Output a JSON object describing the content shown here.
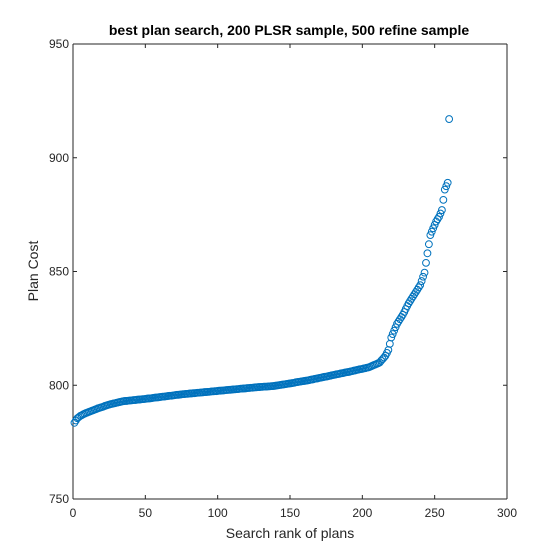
{
  "chart_data": {
    "type": "scatter",
    "title": "best plan search, 200 PLSR sample, 500 refine sample",
    "xlabel": "Search rank of plans",
    "ylabel": "Plan Cost",
    "xlim": [
      0,
      300
    ],
    "ylim": [
      750,
      950
    ],
    "xticks": [
      "0",
      "50",
      "100",
      "150",
      "200",
      "250",
      "300"
    ],
    "yticks": [
      "750",
      "800",
      "850",
      "900",
      "950"
    ],
    "grid": false,
    "marker": "open-circle",
    "marker_color": "#0072BD",
    "series": [
      {
        "anchors": [
          [
            1,
            783.5
          ],
          [
            2,
            784.5
          ],
          [
            3,
            785.5
          ],
          [
            5,
            786.5
          ],
          [
            8,
            787.5
          ],
          [
            12,
            788.5
          ],
          [
            18,
            790
          ],
          [
            25,
            791.5
          ],
          [
            35,
            793
          ],
          [
            50,
            794
          ],
          [
            75,
            796
          ],
          [
            100,
            797.5
          ],
          [
            125,
            799
          ],
          [
            140,
            799.8
          ],
          [
            150,
            800.8
          ],
          [
            165,
            802.5
          ],
          [
            180,
            804.5
          ],
          [
            195,
            806.5
          ],
          [
            205,
            808
          ],
          [
            212,
            810
          ],
          [
            216,
            813
          ],
          [
            218,
            815.5
          ],
          [
            220,
            821
          ],
          [
            224,
            827
          ],
          [
            228,
            831
          ],
          [
            232,
            836
          ],
          [
            236,
            840
          ],
          [
            240,
            844
          ],
          [
            243,
            849.5
          ],
          [
            245,
            858
          ],
          [
            247,
            866
          ],
          [
            249,
            869
          ],
          [
            251,
            872
          ],
          [
            253,
            874
          ],
          [
            255,
            877
          ],
          [
            257,
            886
          ],
          [
            259,
            889
          ],
          [
            260,
            917
          ]
        ],
        "values": [
          [
            1,
            783.5
          ],
          [
            2,
            784.5
          ],
          [
            3,
            785.5
          ],
          [
            4,
            786.0
          ],
          [
            5,
            786.5
          ],
          [
            6,
            786.8
          ],
          [
            7,
            787.2
          ],
          [
            8,
            787.5
          ],
          [
            9,
            787.8
          ],
          [
            10,
            788.0
          ],
          [
            11,
            788.3
          ],
          [
            12,
            788.5
          ],
          [
            13,
            788.8
          ],
          [
            14,
            789.0
          ],
          [
            15,
            789.3
          ],
          [
            16,
            789.5
          ],
          [
            17,
            789.8
          ],
          [
            18,
            790.0
          ],
          [
            19,
            790.2
          ],
          [
            20,
            790.4
          ],
          [
            21,
            790.6
          ],
          [
            22,
            790.9
          ],
          [
            23,
            791.1
          ],
          [
            24,
            791.3
          ],
          [
            25,
            791.5
          ],
          [
            26,
            791.7
          ],
          [
            27,
            791.8
          ],
          [
            28,
            792.0
          ],
          [
            29,
            792.1
          ],
          [
            30,
            792.3
          ],
          [
            31,
            792.4
          ],
          [
            32,
            792.6
          ],
          [
            33,
            792.7
          ],
          [
            34,
            792.9
          ],
          [
            35,
            793.0
          ],
          [
            36,
            793.1
          ],
          [
            37,
            793.1
          ],
          [
            38,
            793.2
          ],
          [
            39,
            793.3
          ],
          [
            40,
            793.3
          ],
          [
            41,
            793.4
          ],
          [
            42,
            793.5
          ],
          [
            43,
            793.5
          ],
          [
            44,
            793.6
          ],
          [
            45,
            793.7
          ],
          [
            46,
            793.7
          ],
          [
            47,
            793.8
          ],
          [
            48,
            793.9
          ],
          [
            49,
            793.9
          ],
          [
            50,
            794.0
          ],
          [
            51,
            794.1
          ],
          [
            52,
            794.2
          ],
          [
            53,
            794.2
          ],
          [
            54,
            794.3
          ],
          [
            55,
            794.4
          ],
          [
            56,
            794.5
          ],
          [
            57,
            794.6
          ],
          [
            58,
            794.6
          ],
          [
            59,
            794.7
          ],
          [
            60,
            794.8
          ],
          [
            61,
            794.9
          ],
          [
            62,
            795.0
          ],
          [
            63,
            795.0
          ],
          [
            64,
            795.1
          ],
          [
            65,
            795.2
          ],
          [
            66,
            795.3
          ],
          [
            67,
            795.4
          ],
          [
            68,
            795.4
          ],
          [
            69,
            795.5
          ],
          [
            70,
            795.6
          ],
          [
            71,
            795.7
          ],
          [
            72,
            795.8
          ],
          [
            73,
            795.8
          ],
          [
            74,
            795.9
          ],
          [
            75,
            796.0
          ],
          [
            76,
            796.1
          ],
          [
            77,
            796.1
          ],
          [
            78,
            796.2
          ],
          [
            79,
            796.2
          ],
          [
            80,
            796.3
          ],
          [
            81,
            796.4
          ],
          [
            82,
            796.4
          ],
          [
            83,
            796.5
          ],
          [
            84,
            796.5
          ],
          [
            85,
            796.6
          ],
          [
            86,
            796.7
          ],
          [
            87,
            796.7
          ],
          [
            88,
            796.8
          ],
          [
            89,
            796.8
          ],
          [
            90,
            796.9
          ],
          [
            91,
            797.0
          ],
          [
            92,
            797.0
          ],
          [
            93,
            797.1
          ],
          [
            94,
            797.1
          ],
          [
            95,
            797.2
          ],
          [
            96,
            797.3
          ],
          [
            97,
            797.3
          ],
          [
            98,
            797.4
          ],
          [
            99,
            797.4
          ],
          [
            100,
            797.5
          ],
          [
            101,
            797.6
          ],
          [
            102,
            797.6
          ],
          [
            103,
            797.7
          ],
          [
            104,
            797.7
          ],
          [
            105,
            797.8
          ],
          [
            106,
            797.9
          ],
          [
            107,
            797.9
          ],
          [
            108,
            798.0
          ],
          [
            109,
            798.0
          ],
          [
            110,
            798.1
          ],
          [
            111,
            798.2
          ],
          [
            112,
            798.2
          ],
          [
            113,
            798.3
          ],
          [
            114,
            798.3
          ],
          [
            115,
            798.4
          ],
          [
            116,
            798.5
          ],
          [
            117,
            798.5
          ],
          [
            118,
            798.6
          ],
          [
            119,
            798.6
          ],
          [
            120,
            798.7
          ],
          [
            121,
            798.8
          ],
          [
            122,
            798.8
          ],
          [
            123,
            798.9
          ],
          [
            124,
            798.9
          ],
          [
            125,
            799.0
          ],
          [
            126,
            799.1
          ],
          [
            127,
            799.1
          ],
          [
            128,
            799.2
          ],
          [
            129,
            799.2
          ],
          [
            130,
            799.3
          ],
          [
            131,
            799.3
          ],
          [
            132,
            799.4
          ],
          [
            133,
            799.4
          ],
          [
            134,
            799.4
          ],
          [
            135,
            799.5
          ],
          [
            136,
            799.5
          ],
          [
            137,
            799.6
          ],
          [
            138,
            799.6
          ],
          [
            139,
            799.7
          ],
          [
            140,
            799.8
          ],
          [
            141,
            799.9
          ],
          [
            142,
            800.0
          ],
          [
            143,
            800.1
          ],
          [
            144,
            800.2
          ],
          [
            145,
            800.3
          ],
          [
            146,
            800.4
          ],
          [
            147,
            800.5
          ],
          [
            148,
            800.6
          ],
          [
            149,
            800.7
          ],
          [
            150,
            800.8
          ],
          [
            151,
            800.9
          ],
          [
            152,
            801.0
          ],
          [
            153,
            801.1
          ],
          [
            154,
            801.3
          ],
          [
            155,
            801.4
          ],
          [
            156,
            801.5
          ],
          [
            157,
            801.6
          ],
          [
            158,
            801.7
          ],
          [
            159,
            801.8
          ],
          [
            160,
            801.9
          ],
          [
            161,
            802.0
          ],
          [
            162,
            802.1
          ],
          [
            163,
            802.2
          ],
          [
            164,
            802.4
          ],
          [
            165,
            802.5
          ],
          [
            166,
            802.6
          ],
          [
            167,
            802.8
          ],
          [
            168,
            802.9
          ],
          [
            169,
            803.0
          ],
          [
            170,
            803.2
          ],
          [
            171,
            803.3
          ],
          [
            172,
            803.4
          ],
          [
            173,
            803.6
          ],
          [
            174,
            803.7
          ],
          [
            175,
            803.8
          ],
          [
            176,
            803.9
          ],
          [
            177,
            804.1
          ],
          [
            178,
            804.2
          ],
          [
            179,
            804.4
          ],
          [
            180,
            804.5
          ],
          [
            181,
            804.6
          ],
          [
            182,
            804.8
          ],
          [
            183,
            804.9
          ],
          [
            184,
            805.0
          ],
          [
            185,
            805.2
          ],
          [
            186,
            805.3
          ],
          [
            187,
            805.4
          ],
          [
            188,
            805.6
          ],
          [
            189,
            805.7
          ],
          [
            190,
            805.8
          ],
          [
            191,
            805.9
          ],
          [
            192,
            806.1
          ],
          [
            193,
            806.2
          ],
          [
            194,
            806.4
          ],
          [
            195,
            806.5
          ],
          [
            196,
            806.7
          ],
          [
            197,
            806.8
          ],
          [
            198,
            807.0
          ],
          [
            199,
            807.1
          ],
          [
            200,
            807.2
          ],
          [
            201,
            807.4
          ],
          [
            202,
            807.5
          ],
          [
            203,
            807.7
          ],
          [
            204,
            807.8
          ],
          [
            205,
            808.0
          ],
          [
            206,
            808.3
          ],
          [
            207,
            808.6
          ],
          [
            208,
            808.9
          ],
          [
            209,
            809.1
          ],
          [
            210,
            809.4
          ],
          [
            211,
            809.7
          ],
          [
            212,
            810.0
          ],
          [
            213,
            810.8
          ],
          [
            214,
            811.5
          ],
          [
            215,
            812.2
          ],
          [
            216,
            813.0
          ],
          [
            217,
            814.2
          ],
          [
            218,
            815.5
          ],
          [
            219,
            818.2
          ],
          [
            220,
            821.0
          ],
          [
            221,
            822.5
          ],
          [
            222,
            824.0
          ],
          [
            223,
            825.5
          ],
          [
            224,
            827.0
          ],
          [
            225,
            828.0
          ],
          [
            226,
            829.0
          ],
          [
            227,
            830.0
          ],
          [
            228,
            831.0
          ],
          [
            229,
            832.2
          ],
          [
            230,
            833.5
          ],
          [
            231,
            834.8
          ],
          [
            232,
            836.0
          ],
          [
            233,
            837.0
          ],
          [
            234,
            838.0
          ],
          [
            235,
            839.0
          ],
          [
            236,
            840.0
          ],
          [
            237,
            841.0
          ],
          [
            238,
            842.0
          ],
          [
            239,
            843.0
          ],
          [
            240,
            844.0
          ],
          [
            241,
            845.8
          ],
          [
            242,
            847.7
          ],
          [
            243,
            849.5
          ],
          [
            244,
            853.8
          ],
          [
            245,
            858.0
          ],
          [
            246,
            862.0
          ],
          [
            247,
            866.0
          ],
          [
            248,
            867.5
          ],
          [
            249,
            869.0
          ],
          [
            250,
            870.5
          ],
          [
            251,
            872.0
          ],
          [
            252,
            873.0
          ],
          [
            253,
            874.0
          ],
          [
            254,
            875.5
          ],
          [
            255,
            877.0
          ],
          [
            256,
            881.5
          ],
          [
            257,
            886.0
          ],
          [
            258,
            887.5
          ],
          [
            259,
            889.0
          ],
          [
            260,
            917.0
          ]
        ]
      }
    ]
  }
}
